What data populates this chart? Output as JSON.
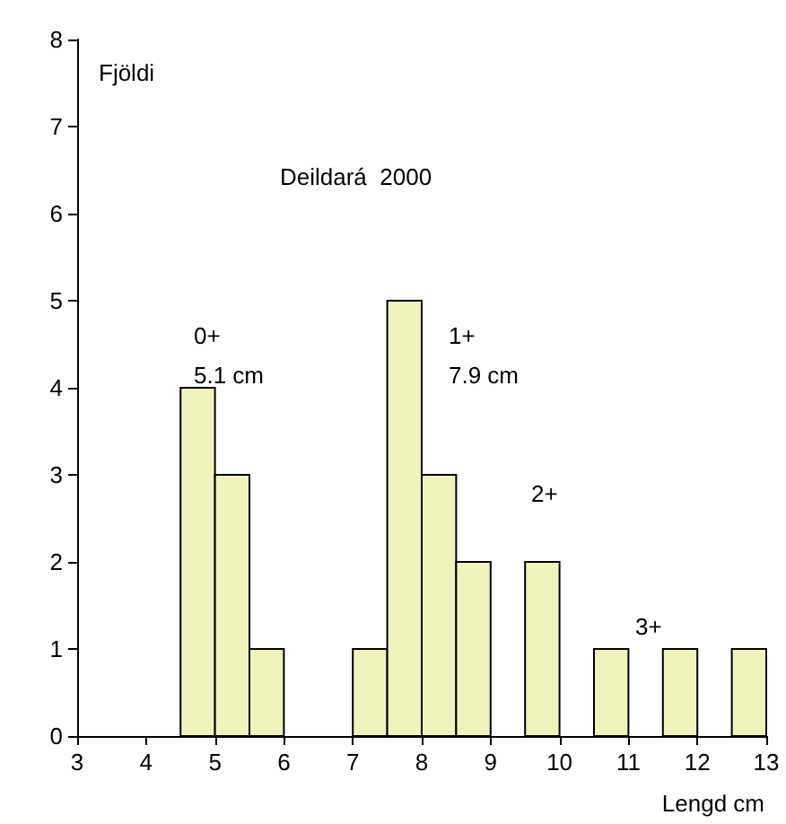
{
  "chart_data": {
    "type": "histogram",
    "title": "Deildará  2000",
    "xlabel": "Lengd cm",
    "ylabel": "Fjöldi",
    "bins": [
      4.5,
      5,
      5.5,
      6,
      6.5,
      7,
      7.5,
      8,
      8.5,
      9,
      9.5,
      10,
      10.5,
      11,
      11.5,
      12,
      12.5,
      13
    ],
    "values": [
      4,
      3,
      1,
      0,
      0,
      1,
      5,
      3,
      2,
      0,
      2,
      0,
      1,
      0,
      1,
      0,
      1
    ],
    "color": "#f2f2bd",
    "xlim": [
      3,
      13
    ],
    "xticks": [
      3,
      4,
      5,
      6,
      7,
      8,
      9,
      10,
      11,
      12,
      13
    ],
    "ylim": [
      0,
      8
    ],
    "yticks": [
      0,
      1,
      2,
      3,
      4,
      5,
      6,
      7,
      8
    ],
    "grid": false,
    "annotations": [
      "0+\n5.1 cm",
      "1+\n7.9 cm",
      "2+",
      "3+"
    ]
  }
}
